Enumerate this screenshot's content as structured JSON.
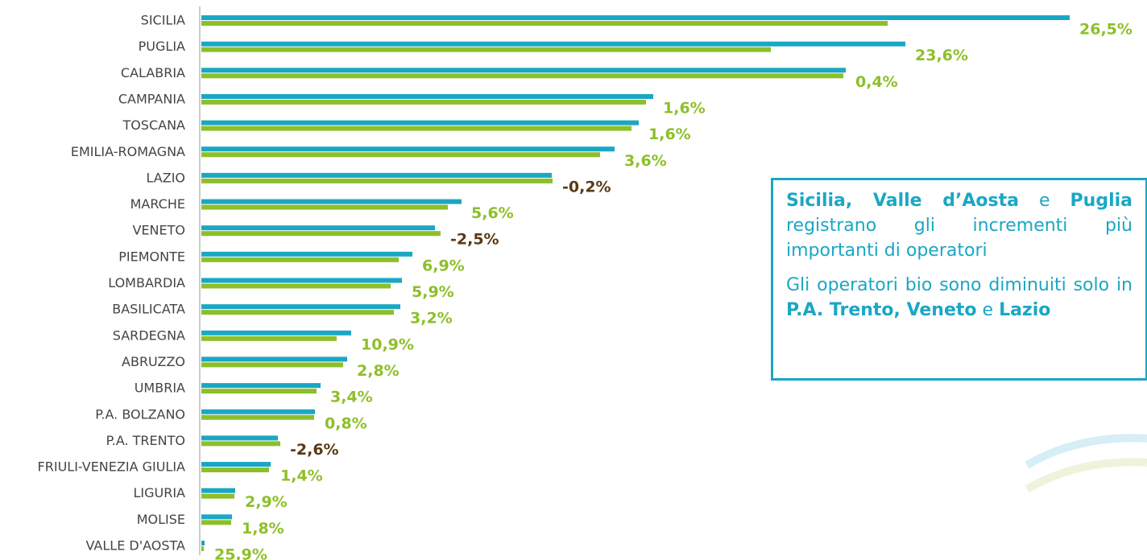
{
  "chart_data": {
    "type": "bar",
    "orientation": "horizontal",
    "categories": [
      "SICILIA",
      "PUGLIA",
      "CALABRIA",
      "CAMPANIA",
      "TOSCANA",
      "EMILIA-ROMAGNA",
      "LAZIO",
      "MARCHE",
      "VENETO",
      "PIEMONTE",
      "LOMBARDIA",
      "BASILICATA",
      "SARDEGNA",
      "ABRUZZO",
      "UMBRIA",
      "P.A. BOLZANO",
      "P.A. TRENTO",
      "FRIULI-VENEZIA GIULIA",
      "LIGURIA",
      "MOLISE",
      "VALLE D'AOSTA"
    ],
    "series": [
      {
        "color": "#1aa7c4",
        "values": [
          1078,
          874,
          800,
          561,
          543,
          513,
          435,
          323,
          290,
          262,
          249,
          247,
          186,
          181,
          148,
          141,
          95,
          86,
          42,
          38,
          4
        ]
      },
      {
        "color": "#8dbf2a",
        "values": [
          852,
          707,
          797,
          552,
          534,
          495,
          436,
          306,
          297,
          245,
          235,
          239,
          168,
          176,
          143,
          140,
          98,
          84,
          41,
          37,
          3
        ]
      }
    ],
    "xlim": [
      0,
      1078
    ],
    "changes": {
      "values": [
        26.5,
        23.6,
        0.4,
        1.6,
        1.6,
        3.6,
        -0.2,
        5.6,
        -2.5,
        6.9,
        5.9,
        3.2,
        10.9,
        2.8,
        3.4,
        0.8,
        -2.6,
        1.4,
        2.9,
        1.8,
        25.9
      ],
      "value_labels": [
        "26,5%",
        "23,6%",
        "0,4%",
        "1,6%",
        "1,6%",
        "3,6%",
        "-0,2%",
        "5,6%",
        "-2,5%",
        "6,9%",
        "5,9%",
        "3,2%",
        "10,9%",
        "2,8%",
        "3,4%",
        "0,8%",
        "-2,6%",
        "1,4%",
        "2,9%",
        "1,8%",
        "25,9%"
      ],
      "positive_color": "#8dbf2a",
      "negative_color": "#5a3a14"
    }
  },
  "note_box": {
    "paragraphs": [
      [
        {
          "text": "Sicilia, Valle d’Aosta",
          "bold": true
        },
        {
          "text": " e "
        },
        {
          "text": "Puglia",
          "bold": true
        },
        {
          "text": " registrano gli incrementi più importanti di operatori"
        }
      ],
      [
        {
          "text": "Gli operatori bio sono diminuiti solo in "
        },
        {
          "text": "P.A. Trento, Veneto",
          "bold": true
        },
        {
          "text": " e "
        },
        {
          "text": "Lazio",
          "bold": true
        }
      ]
    ]
  }
}
